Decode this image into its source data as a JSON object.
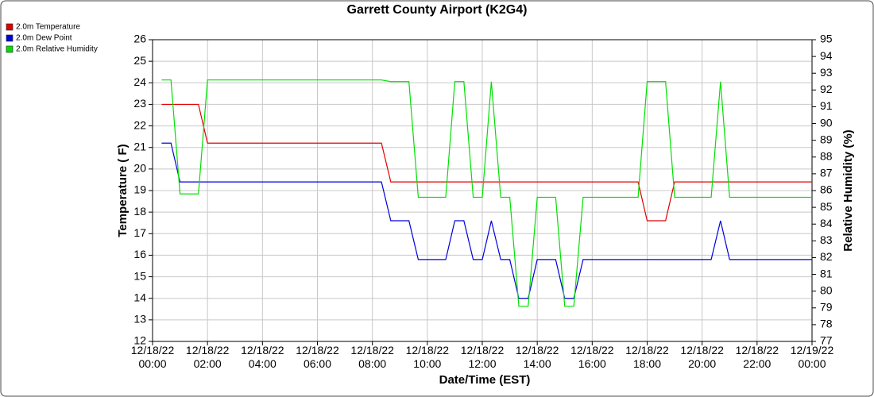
{
  "chart_data": {
    "type": "line",
    "title": "Garrett County Airport (K2G4)",
    "x_label": "Date/Time (EST)",
    "y_label": "Temperature ( F)",
    "y2_label": "Relative Humidity (%)",
    "x": [
      0.33,
      0.67,
      1.0,
      1.67,
      2.0,
      8.33,
      8.67,
      9.33,
      9.67,
      10.67,
      11.0,
      11.33,
      11.67,
      12.0,
      12.33,
      12.67,
      13.0,
      13.33,
      13.67,
      14.0,
      14.67,
      15.0,
      15.33,
      15.67,
      17.67,
      18.0,
      18.67,
      19.0,
      20.33,
      20.67,
      21.0,
      24.0
    ],
    "series": [
      {
        "name": "2.0m Temperature",
        "color": "#e00000",
        "axis": "y",
        "values": [
          23,
          23,
          23,
          23,
          21.2,
          21.2,
          19.4,
          19.4,
          19.4,
          19.4,
          19.4,
          19.4,
          19.4,
          19.4,
          19.4,
          19.4,
          19.4,
          19.4,
          19.4,
          19.4,
          19.4,
          19.4,
          19.4,
          19.4,
          19.4,
          17.6,
          17.6,
          19.4,
          19.4,
          19.4,
          19.4,
          19.4
        ]
      },
      {
        "name": "2.0m Dew Point",
        "color": "#0000dd",
        "axis": "y",
        "values": [
          21.2,
          21.2,
          19.4,
          19.4,
          19.4,
          19.4,
          17.6,
          17.6,
          15.8,
          15.8,
          17.6,
          17.6,
          15.8,
          15.8,
          17.6,
          15.8,
          15.8,
          14,
          14,
          15.8,
          15.8,
          14,
          14,
          15.8,
          15.8,
          15.8,
          15.8,
          15.8,
          15.8,
          17.6,
          15.8,
          15.8
        ]
      },
      {
        "name": "2.0m Relative Humidity",
        "color": "#00e000",
        "axis": "y2",
        "values": [
          92.6,
          92.6,
          85.8,
          85.8,
          92.6,
          92.6,
          92.5,
          92.5,
          85.6,
          85.6,
          92.5,
          92.5,
          85.6,
          85.6,
          92.5,
          85.6,
          85.6,
          79.1,
          79.1,
          85.6,
          85.6,
          79.1,
          79.1,
          85.6,
          85.6,
          92.5,
          92.5,
          85.6,
          85.6,
          92.5,
          85.6,
          85.6
        ]
      }
    ],
    "xlim": [
      0,
      24
    ],
    "xticks": [
      {
        "value": 0,
        "label": "12/18/22\n00:00"
      },
      {
        "value": 2,
        "label": "12/18/22\n02:00"
      },
      {
        "value": 4,
        "label": "12/18/22\n04:00"
      },
      {
        "value": 6,
        "label": "12/18/22\n06:00"
      },
      {
        "value": 8,
        "label": "12/18/22\n08:00"
      },
      {
        "value": 10,
        "label": "12/18/22\n10:00"
      },
      {
        "value": 12,
        "label": "12/18/22\n12:00"
      },
      {
        "value": 14,
        "label": "12/18/22\n14:00"
      },
      {
        "value": 16,
        "label": "12/18/22\n16:00"
      },
      {
        "value": 18,
        "label": "12/18/22\n18:00"
      },
      {
        "value": 20,
        "label": "12/18/22\n20:00"
      },
      {
        "value": 22,
        "label": "12/18/22\n22:00"
      },
      {
        "value": 24,
        "label": "12/19/22\n00:00"
      }
    ],
    "ylim": [
      12,
      26
    ],
    "yticks": [
      12,
      13,
      14,
      15,
      16,
      17,
      18,
      19,
      20,
      21,
      22,
      23,
      24,
      25,
      26
    ],
    "y2lim": [
      77,
      95
    ],
    "y2ticks": [
      77,
      78,
      79,
      80,
      81,
      82,
      83,
      84,
      85,
      86,
      87,
      88,
      89,
      90,
      91,
      92,
      93,
      94,
      95
    ],
    "grid": true,
    "legend": "top-left"
  }
}
